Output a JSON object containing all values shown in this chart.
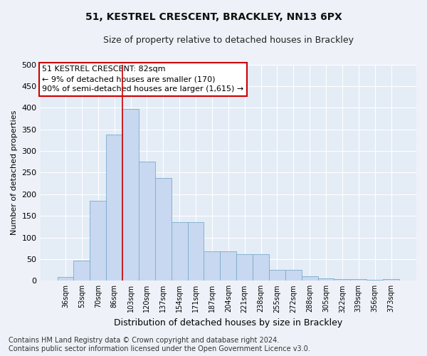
{
  "title": "51, KESTREL CRESCENT, BRACKLEY, NN13 6PX",
  "subtitle": "Size of property relative to detached houses in Brackley",
  "xlabel": "Distribution of detached houses by size in Brackley",
  "ylabel": "Number of detached properties",
  "categories": [
    "36sqm",
    "53sqm",
    "70sqm",
    "86sqm",
    "103sqm",
    "120sqm",
    "137sqm",
    "154sqm",
    "171sqm",
    "187sqm",
    "204sqm",
    "221sqm",
    "238sqm",
    "255sqm",
    "272sqm",
    "288sqm",
    "305sqm",
    "322sqm",
    "339sqm",
    "356sqm",
    "373sqm"
  ],
  "values": [
    8,
    46,
    185,
    338,
    398,
    276,
    238,
    136,
    135,
    68,
    68,
    61,
    61,
    25,
    25,
    11,
    6,
    4,
    3,
    2,
    3
  ],
  "bar_color": "#c8d8f0",
  "bar_edge_color": "#7aaccc",
  "vline_x": 3.5,
  "vline_color": "#cc0000",
  "annotation_box_text": "51 KESTREL CRESCENT: 82sqm\n← 9% of detached houses are smaller (170)\n90% of semi-detached houses are larger (1,615) →",
  "annotation_box_color": "#cc0000",
  "annotation_box_fill": "#ffffff",
  "ylim": [
    0,
    500
  ],
  "yticks": [
    0,
    50,
    100,
    150,
    200,
    250,
    300,
    350,
    400,
    450,
    500
  ],
  "footnote": "Contains HM Land Registry data © Crown copyright and database right 2024.\nContains public sector information licensed under the Open Government Licence v3.0.",
  "bg_color": "#eef2f8",
  "plot_bg_color": "#e4ecf6",
  "grid_color": "#ffffff",
  "title_fontsize": 10,
  "subtitle_fontsize": 9,
  "annotation_fontsize": 8,
  "ylabel_fontsize": 8,
  "xlabel_fontsize": 9,
  "footnote_fontsize": 7
}
